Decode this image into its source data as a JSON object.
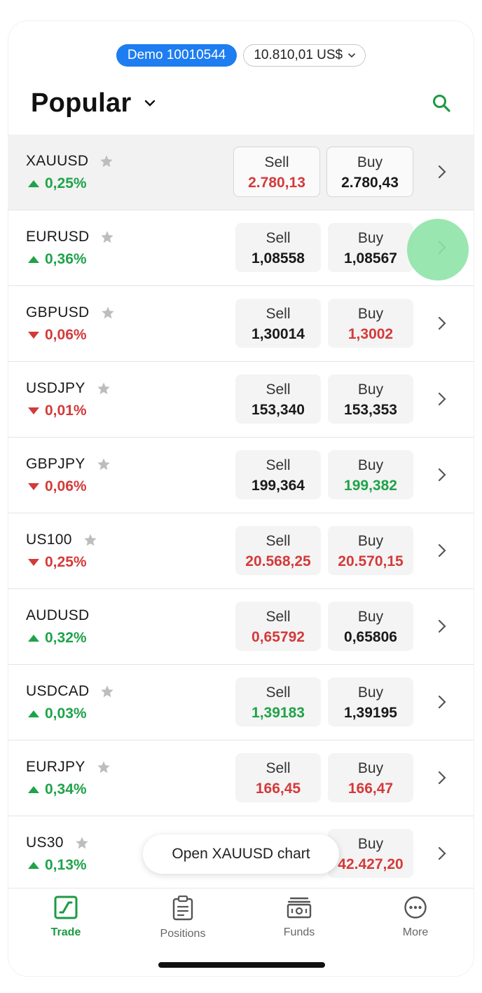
{
  "header": {
    "account_label": "Demo 10010544",
    "balance": "10.810,01 US$",
    "title": "Popular"
  },
  "instruments": [
    {
      "symbol": "XAUUSD",
      "change": "0,25%",
      "direction": "up",
      "sell_label": "Sell",
      "sell": "2.780,13",
      "sell_color": "red",
      "buy_label": "Buy",
      "buy": "2.780,43",
      "buy_color": "black",
      "star": true
    },
    {
      "symbol": "EURUSD",
      "change": "0,36%",
      "direction": "up",
      "sell_label": "Sell",
      "sell": "1,08558",
      "sell_color": "black",
      "buy_label": "Buy",
      "buy": "1,08567",
      "buy_color": "black",
      "star": true
    },
    {
      "symbol": "GBPUSD",
      "change": "0,06%",
      "direction": "down",
      "sell_label": "Sell",
      "sell": "1,30014",
      "sell_color": "black",
      "buy_label": "Buy",
      "buy": "1,3002",
      "buy_color": "red",
      "star": true
    },
    {
      "symbol": "USDJPY",
      "change": "0,01%",
      "direction": "down",
      "sell_label": "Sell",
      "sell": "153,340",
      "sell_color": "black",
      "buy_label": "Buy",
      "buy": "153,353",
      "buy_color": "black",
      "star": true
    },
    {
      "symbol": "GBPJPY",
      "change": "0,06%",
      "direction": "down",
      "sell_label": "Sell",
      "sell": "199,364",
      "sell_color": "black",
      "buy_label": "Buy",
      "buy": "199,382",
      "buy_color": "green",
      "star": true
    },
    {
      "symbol": "US100",
      "change": "0,25%",
      "direction": "down",
      "sell_label": "Sell",
      "sell": "20.568,25",
      "sell_color": "red",
      "buy_label": "Buy",
      "buy": "20.570,15",
      "buy_color": "red",
      "star": true
    },
    {
      "symbol": "AUDUSD",
      "change": "0,32%",
      "direction": "up",
      "sell_label": "Sell",
      "sell": "0,65792",
      "sell_color": "red",
      "buy_label": "Buy",
      "buy": "0,65806",
      "buy_color": "black",
      "star": false
    },
    {
      "symbol": "USDCAD",
      "change": "0,03%",
      "direction": "up",
      "sell_label": "Sell",
      "sell": "1,39183",
      "sell_color": "green",
      "buy_label": "Buy",
      "buy": "1,39195",
      "buy_color": "black",
      "star": true
    },
    {
      "symbol": "EURJPY",
      "change": "0,34%",
      "direction": "up",
      "sell_label": "Sell",
      "sell": "166,45",
      "sell_color": "red",
      "buy_label": "Buy",
      "buy": "166,47",
      "buy_color": "red",
      "star": true
    },
    {
      "symbol": "US30",
      "change": "0,13%",
      "direction": "up",
      "sell_label": "",
      "sell": "",
      "sell_color": "black",
      "buy_label": "Buy",
      "buy": "42.427,20",
      "buy_color": "red",
      "star": true
    }
  ],
  "toast": "Open XAUUSD chart",
  "tabs": [
    {
      "label": "Trade",
      "icon": "trade-icon",
      "active": true
    },
    {
      "label": "Positions",
      "icon": "clipboard-icon",
      "active": false
    },
    {
      "label": "Funds",
      "icon": "banknote-icon",
      "active": false
    },
    {
      "label": "More",
      "icon": "more-dots-icon",
      "active": false
    }
  ],
  "colors": {
    "accent_blue": "#1e7df0",
    "green": "#1fa34a",
    "red": "#d43a3a",
    "tap_highlight": "#8fe3a8"
  }
}
